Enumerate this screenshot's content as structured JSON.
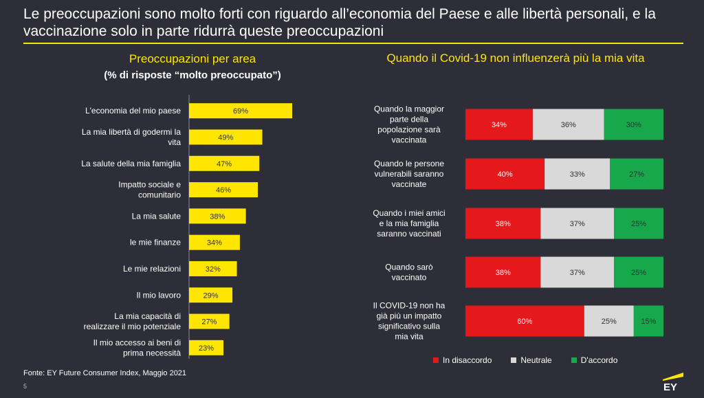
{
  "title": "Le preoccupazioni sono molto forti con riguardo all’economia del Paese e alle libertà personali, e la vaccinazione solo in parte ridurrà queste preoccupazioni",
  "colors": {
    "background": "#2e2e38",
    "accent": "#ffe600",
    "disagree": "#e5191c",
    "neutral": "#d9d9d9",
    "agree": "#17a84c"
  },
  "chart_data": [
    {
      "type": "bar",
      "orientation": "horizontal",
      "title": "Preoccupazioni per area",
      "subtitle": "(% di risposte “molto preoccupato”)",
      "unit": "%",
      "categories": [
        "L'economia del mio paese",
        "La mia libertà di godermi la vita",
        "La salute della mia famiglia",
        "Impatto sociale e comunitario",
        "La mia salute",
        "le mie finanze",
        "Le mie relazioni",
        "Il mio lavoro",
        "La mia capacità di realizzare il mio potenziale",
        "Il mio accesso ai beni di prima necessità"
      ],
      "values": [
        69,
        49,
        47,
        46,
        38,
        34,
        32,
        29,
        27,
        23
      ],
      "labels": [
        "69%",
        "49%",
        "47%",
        "46%",
        "38%",
        "34%",
        "32%",
        "29%",
        "27%",
        "23%"
      ],
      "xlim": [
        0,
        100
      ]
    },
    {
      "type": "bar",
      "orientation": "horizontal",
      "stacked": true,
      "title": "Quando il Covid-19 non influenzerà più la mia vita",
      "unit": "%",
      "categories": [
        "Quando la maggior parte della popolazione sarà vaccinata",
        "Quando le persone vulnerabili saranno vaccinate",
        "Quando i miei amici e la mia famiglia saranno vaccinati",
        "Quando sarò vaccinato",
        "Il COVID-19 non ha già più un impatto significativo sulla mia vita"
      ],
      "series": [
        {
          "name": "In disaccordo",
          "values": [
            34,
            40,
            38,
            38,
            60
          ],
          "labels": [
            "34%",
            "40%",
            "38%",
            "38%",
            "60%"
          ]
        },
        {
          "name": "Neutrale",
          "values": [
            36,
            33,
            37,
            37,
            25
          ],
          "labels": [
            "36%",
            "33%",
            "37%",
            "37%",
            "25%"
          ]
        },
        {
          "name": "D'accordo",
          "values": [
            30,
            27,
            25,
            25,
            15
          ],
          "labels": [
            "30%",
            "27%",
            "25%",
            "25%",
            "15%"
          ]
        }
      ],
      "legend": "bottom"
    }
  ],
  "source": "Fonte: EY Future Consumer Index, Maggio 2021",
  "page_number": "5",
  "logo_text": "EY"
}
